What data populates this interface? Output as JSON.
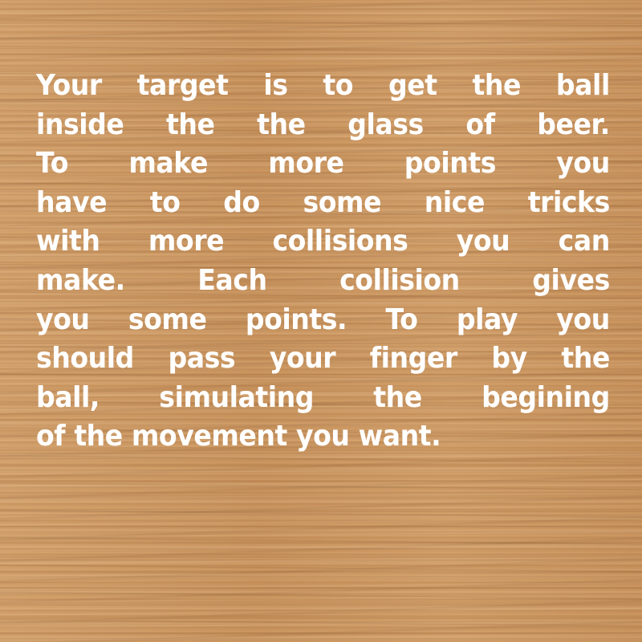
{
  "instructions": {
    "lines": [
      "Your target is to get the ball",
      "inside the the glass of beer.",
      "To make more points you",
      "have to do some nice tricks",
      "with more collisions you can",
      "make. Each collision gives",
      "you some points. To play you",
      "should pass your finger by the",
      "ball, simulating the begining",
      "of the movement you want."
    ]
  },
  "colors": {
    "background": "#cf9a63",
    "text": "#ffffff"
  }
}
